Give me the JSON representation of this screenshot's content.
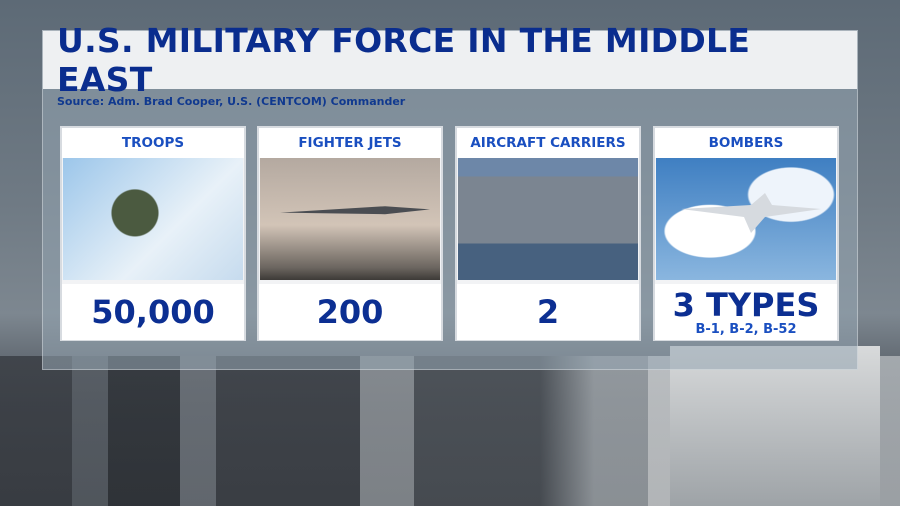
{
  "title": "U.S. MILITARY FORCE IN THE MIDDLE EAST",
  "source": "Source: Adm. Brad Cooper, U.S. (CENTCOM) Commander",
  "cards": [
    {
      "label": "TROOPS",
      "value": "50,000",
      "image": "fighter-pilot-photo"
    },
    {
      "label": "FIGHTER JETS",
      "value": "200",
      "image": "fighter-jet-photo"
    },
    {
      "label": "AIRCRAFT CARRIERS",
      "value": "2",
      "image": "aircraft-carrier-photo"
    },
    {
      "label": "BOMBERS",
      "value": "3 TYPES",
      "detail": "B-1, B-2, B-52",
      "image": "bomber-photo"
    }
  ],
  "colors": {
    "title": "#0a2d8e",
    "label": "#1a4fc0"
  }
}
